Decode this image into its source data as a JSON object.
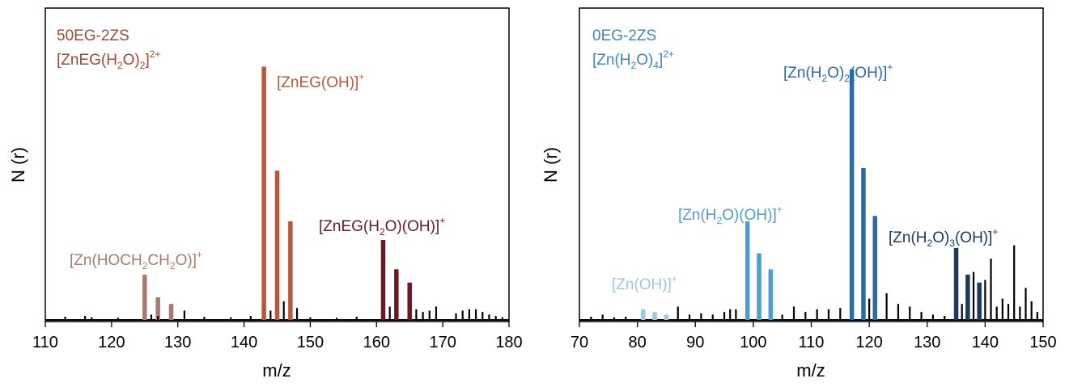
{
  "chart_data": [
    {
      "type": "bar",
      "xlabel": "m/z",
      "ylabel": "N (r)",
      "xlim": [
        110,
        180
      ],
      "ylim": [
        0,
        1
      ],
      "xticks": [
        110,
        120,
        130,
        140,
        150,
        160,
        170,
        180
      ],
      "grid": false,
      "legend": "none",
      "annotations": {
        "sample": "50EG-2ZS",
        "complex": {
          "main": "[ZnEG(H",
          "sub1": "2",
          "mid": "O)",
          "sub2": "2",
          "end": "]",
          "sup": "2+"
        },
        "peak_a": {
          "pre": "[Zn(HOCH",
          "sub1": "2",
          "mid": "CH",
          "sub2": "2",
          "end": "O)]",
          "sup": "+"
        },
        "peak_b": {
          "text": "[ZnEG(OH)]",
          "sup": "+"
        },
        "peak_c": {
          "pre": "[ZnEG(H",
          "sub1": "2",
          "end": "O)(OH)]",
          "sup": "+"
        }
      },
      "colors": {
        "a": "#a87a72",
        "b": "#b5583c",
        "c": "#6a1a22",
        "text_main": "#9b4a33",
        "baseline": "#000000"
      },
      "series": [
        {
          "group": "a",
          "x": [
            125,
            127,
            129
          ],
          "values": [
            0.17,
            0.085,
            0.06
          ]
        },
        {
          "group": "b",
          "x": [
            143,
            145,
            147
          ],
          "values": [
            0.95,
            0.56,
            0.37
          ]
        },
        {
          "group": "c",
          "x": [
            161,
            163,
            165
          ],
          "values": [
            0.3,
            0.19,
            0.14
          ]
        },
        {
          "group": "baseline",
          "x": [
            113,
            116,
            117,
            121,
            126,
            127,
            131,
            134,
            138,
            141,
            144,
            146,
            148,
            150,
            154,
            157,
            162,
            166,
            167,
            168,
            169,
            172,
            173,
            174,
            175,
            176,
            177,
            178,
            179
          ],
          "values": [
            0.012,
            0.015,
            0.01,
            0.008,
            0.02,
            0.015,
            0.035,
            0.012,
            0.01,
            0.015,
            0.035,
            0.07,
            0.045,
            0.01,
            0.008,
            0.012,
            0.05,
            0.04,
            0.03,
            0.035,
            0.05,
            0.025,
            0.035,
            0.04,
            0.04,
            0.03,
            0.02,
            0.015,
            0.01
          ]
        }
      ]
    },
    {
      "type": "bar",
      "xlabel": "m/z",
      "ylabel": "N (r)",
      "xlim": [
        70,
        150
      ],
      "ylim": [
        0,
        1
      ],
      "xticks": [
        70,
        80,
        90,
        100,
        110,
        120,
        130,
        140,
        150
      ],
      "grid": false,
      "legend": "none",
      "annotations": {
        "sample": "0EG-2ZS",
        "complex": {
          "main": "[Zn(H",
          "sub1": "2",
          "mid": "O)",
          "sub2": "4",
          "end": "]",
          "sup": "2+"
        },
        "peak_a": {
          "text": "[Zn(OH)]",
          "sup": "+"
        },
        "peak_b": {
          "pre": "[Zn(H",
          "sub1": "2",
          "end": "O)(OH)]",
          "sup": "+"
        },
        "peak_c": {
          "pre": "[Zn(H",
          "sub1": "2",
          "mid": "O)",
          "sub2": "2",
          "end": "(OH)]",
          "sup": "+"
        },
        "peak_d": {
          "pre": "[Zn(H",
          "sub1": "2",
          "mid": "O)",
          "sub2": "3",
          "end": "(OH)]",
          "sup": "+"
        }
      },
      "colors": {
        "a": "#9cc8e2",
        "b": "#4f9ccf",
        "c": "#2b69a8",
        "d": "#1c3a60",
        "text_main": "#3d86b8",
        "baseline": "#000000"
      },
      "series": [
        {
          "group": "a",
          "x": [
            81,
            83,
            85
          ],
          "values": [
            0.04,
            0.03,
            0.02
          ]
        },
        {
          "group": "b",
          "x": [
            99,
            101,
            103
          ],
          "values": [
            0.37,
            0.25,
            0.19
          ]
        },
        {
          "group": "c",
          "x": [
            117,
            119,
            121
          ],
          "values": [
            0.94,
            0.57,
            0.39
          ]
        },
        {
          "group": "d",
          "x": [
            135,
            137,
            139
          ],
          "values": [
            0.27,
            0.17,
            0.14
          ]
        },
        {
          "group": "baseline",
          "x": [
            72,
            74,
            76,
            78,
            87,
            89,
            91,
            93,
            95,
            96,
            97,
            105,
            107,
            109,
            111,
            113,
            115,
            120,
            123,
            125,
            127,
            129,
            131,
            133,
            136,
            138,
            140,
            141,
            142,
            143,
            144,
            145,
            146,
            147,
            148,
            149
          ],
          "values": [
            0.012,
            0.02,
            0.01,
            0.012,
            0.05,
            0.02,
            0.025,
            0.02,
            0.03,
            0.04,
            0.04,
            0.02,
            0.05,
            0.03,
            0.04,
            0.04,
            0.045,
            0.08,
            0.1,
            0.06,
            0.05,
            0.03,
            0.02,
            0.015,
            0.06,
            0.18,
            0.15,
            0.23,
            0.05,
            0.08,
            0.06,
            0.28,
            0.05,
            0.12,
            0.07,
            0.03
          ]
        }
      ]
    }
  ]
}
